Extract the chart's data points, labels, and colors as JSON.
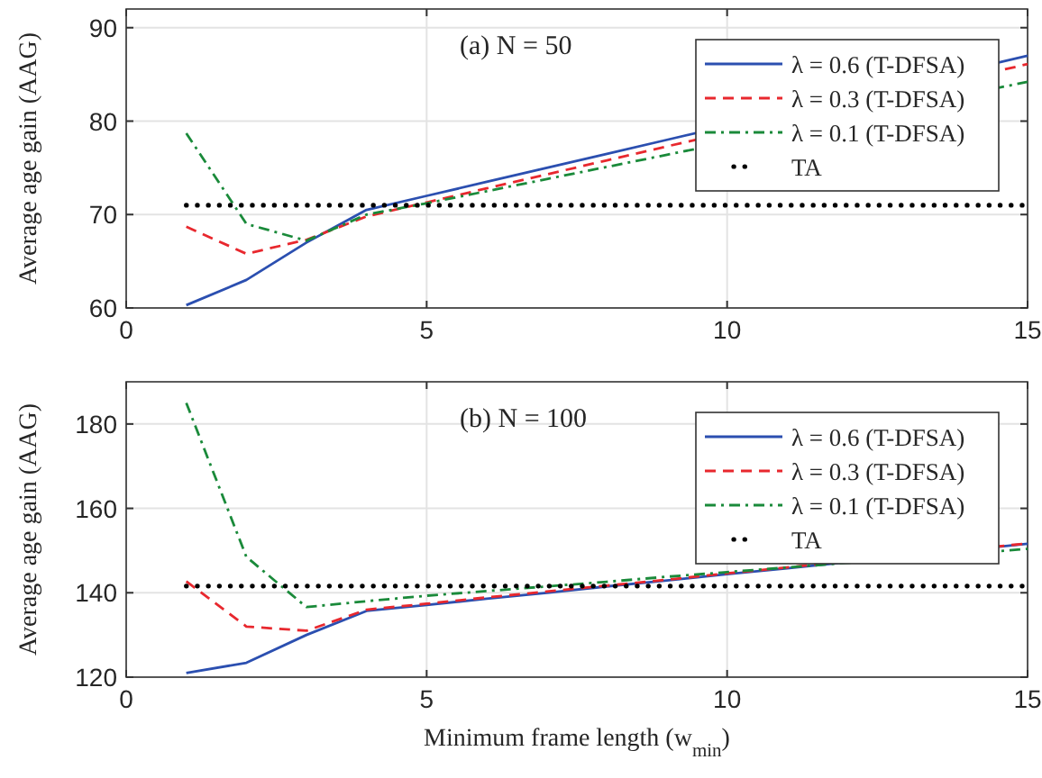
{
  "chart_data": [
    {
      "type": "line",
      "annotations": [
        "(a)  N = 50"
      ],
      "ylabel": "Average age gain (AAG)",
      "x": [
        1,
        2,
        3,
        4,
        5,
        6,
        7,
        8,
        9,
        15
      ],
      "xlim": [
        0,
        15
      ],
      "xticks": [
        0,
        5,
        10,
        15
      ],
      "ylim": [
        60,
        92
      ],
      "yticks": [
        60,
        70,
        80,
        90
      ],
      "grid": true,
      "legend": "top right",
      "marker": "none",
      "series": [
        {
          "name": "λ = 0.6 (T-DFSA)",
          "color": "#2b4fb0",
          "line_style": "solid",
          "values": [
            60.3,
            63,
            67,
            70.5,
            72,
            73.5,
            75,
            76.5,
            78,
            87
          ]
        },
        {
          "name": "λ = 0.3 (T-DFSA)",
          "color": "#e8282e",
          "line_style": "dashed",
          "values": [
            68.7,
            65.8,
            67.3,
            69.8,
            71.3,
            72.8,
            74.3,
            75.8,
            77.3,
            86.1
          ]
        },
        {
          "name": "λ = 0.1 (T-DFSA)",
          "color": "#1a8a3a",
          "line_style": "dashdot",
          "values": [
            78.7,
            69,
            67.2,
            70,
            71.2,
            72.5,
            73.8,
            75.1,
            76.4,
            84.2
          ]
        },
        {
          "name": "TA",
          "color": "#000000",
          "line_style": "dotted",
          "values": [
            71,
            71,
            71,
            71,
            71,
            71,
            71,
            71,
            71,
            71
          ]
        }
      ]
    },
    {
      "type": "line",
      "annotations": [
        "(b)  N = 100"
      ],
      "xlabel": "Minimum frame length (w$_{min}$)",
      "ylabel": "Average age gain (AAG)",
      "x": [
        1,
        2,
        3,
        4,
        5,
        6,
        7,
        8,
        9,
        10,
        11,
        15
      ],
      "xlim": [
        0,
        15
      ],
      "xticks": [
        0,
        5,
        10,
        15
      ],
      "ylim": [
        120,
        190
      ],
      "yticks": [
        120,
        140,
        160,
        180
      ],
      "grid": true,
      "legend": "top right",
      "marker": "none",
      "series": [
        {
          "name": "λ = 0.6 (T-DFSA)",
          "color": "#2b4fb0",
          "line_style": "solid",
          "values": [
            121,
            123.4,
            130,
            135.7,
            137.1,
            138.6,
            140,
            141.5,
            142.9,
            144.4,
            145.8,
            151.6
          ]
        },
        {
          "name": "λ = 0.3 (T-DFSA)",
          "color": "#e8282e",
          "line_style": "dashed",
          "values": [
            142.7,
            132,
            131,
            136,
            137.4,
            138.9,
            140.3,
            141.7,
            143.1,
            144.6,
            146,
            151.7
          ]
        },
        {
          "name": "λ = 0.1 (T-DFSA)",
          "color": "#1a8a3a",
          "line_style": "dashdot",
          "values": [
            185,
            148.5,
            136.6,
            138,
            139.3,
            140.4,
            141.5,
            142.6,
            143.8,
            144.9,
            146,
            150.4
          ]
        },
        {
          "name": "TA",
          "color": "#000000",
          "line_style": "dotted",
          "values": [
            141.6,
            141.6,
            141.6,
            141.6,
            141.6,
            141.6,
            141.6,
            141.6,
            141.6,
            141.6,
            141.6,
            141.6
          ]
        }
      ]
    }
  ]
}
